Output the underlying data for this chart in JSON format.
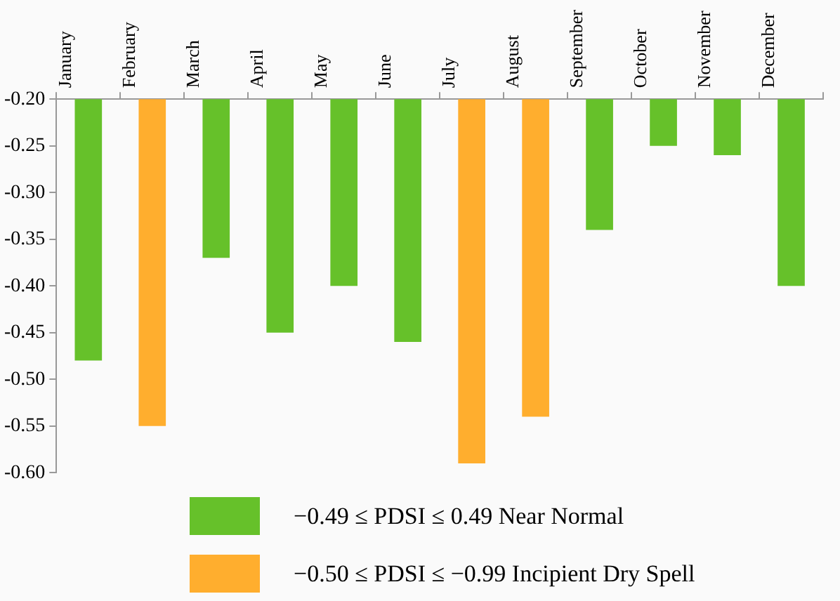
{
  "chart_data": {
    "type": "bar",
    "categories": [
      "January",
      "February",
      "March",
      "April",
      "May",
      "June",
      "July",
      "August",
      "September",
      "October",
      "November",
      "December"
    ],
    "series": [
      {
        "name": "−0.49 ≤ PDSI ≤ 0.49 Near Normal",
        "color": "#66c12a",
        "values": [
          -0.48,
          null,
          -0.37,
          -0.45,
          -0.4,
          -0.46,
          null,
          null,
          -0.34,
          -0.25,
          -0.26,
          -0.4
        ]
      },
      {
        "name": "−0.50 ≤ PDSI ≤ −0.99 Incipient Dry Spell",
        "color": "#ffae2e",
        "values": [
          null,
          -0.55,
          null,
          null,
          null,
          null,
          -0.59,
          -0.54,
          null,
          null,
          null,
          null
        ]
      }
    ],
    "ylim": [
      -0.6,
      -0.2
    ],
    "yticks": [
      {
        "value": -0.6,
        "label": "-0.60"
      },
      {
        "value": -0.55,
        "label": "-0.55"
      },
      {
        "value": -0.5,
        "label": "-0.50"
      },
      {
        "value": -0.45,
        "label": "-0.45"
      },
      {
        "value": -0.4,
        "label": "-0.40"
      },
      {
        "value": -0.35,
        "label": "-0.35"
      },
      {
        "value": -0.3,
        "label": "-0.30"
      },
      {
        "value": -0.25,
        "label": "-0.25"
      },
      {
        "value": -0.2,
        "label": "-0.20"
      }
    ],
    "grid": false,
    "legend": "bottom"
  }
}
